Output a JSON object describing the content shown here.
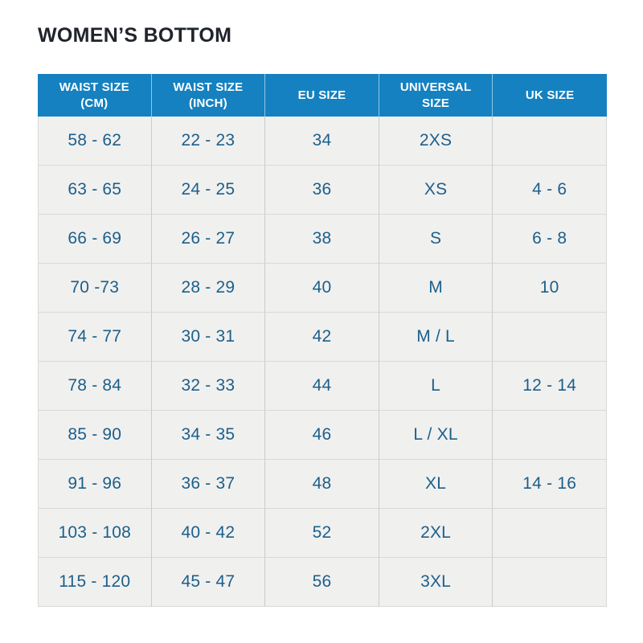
{
  "page_title": "WOMEN’S BOTTOM",
  "colors": {
    "header_bg": "#1581c0",
    "header_text": "#ffffff",
    "header_divider": "#8ec6e6",
    "cell_bg": "#f0f0ef",
    "cell_text": "#1c5f8a",
    "border_h": "#d9d9d9",
    "border_v": "#cbcbcb",
    "title_text": "#20242b",
    "page_bg": "#ffffff"
  },
  "chart_data": {
    "type": "table",
    "title": "WOMEN’S BOTTOM",
    "headers": [
      "WAIST SIZE (CM)",
      "WAIST SIZE (INCH)",
      "EU SIZE",
      "UNIVERSAL SIZE",
      "UK SIZE"
    ],
    "rows": [
      [
        "58 - 62",
        "22 - 23",
        "34",
        "2XS",
        ""
      ],
      [
        "63 - 65",
        "24 - 25",
        "36",
        "XS",
        "4 - 6"
      ],
      [
        "66 - 69",
        "26 - 27",
        "38",
        "S",
        "6 - 8"
      ],
      [
        "70 -73",
        "28 - 29",
        "40",
        "M",
        "10"
      ],
      [
        "74 - 77",
        "30 - 31",
        "42",
        "M / L",
        ""
      ],
      [
        "78 - 84",
        "32 - 33",
        "44",
        "L",
        "12 - 14"
      ],
      [
        "85 - 90",
        "34 - 35",
        "46",
        "L / XL",
        ""
      ],
      [
        "91 - 96",
        "36 - 37",
        "48",
        "XL",
        "14 - 16"
      ],
      [
        "103 - 108",
        "40 - 42",
        "52",
        "2XL",
        ""
      ],
      [
        "115 - 120",
        "45 - 47",
        "56",
        "3XL",
        ""
      ]
    ]
  }
}
